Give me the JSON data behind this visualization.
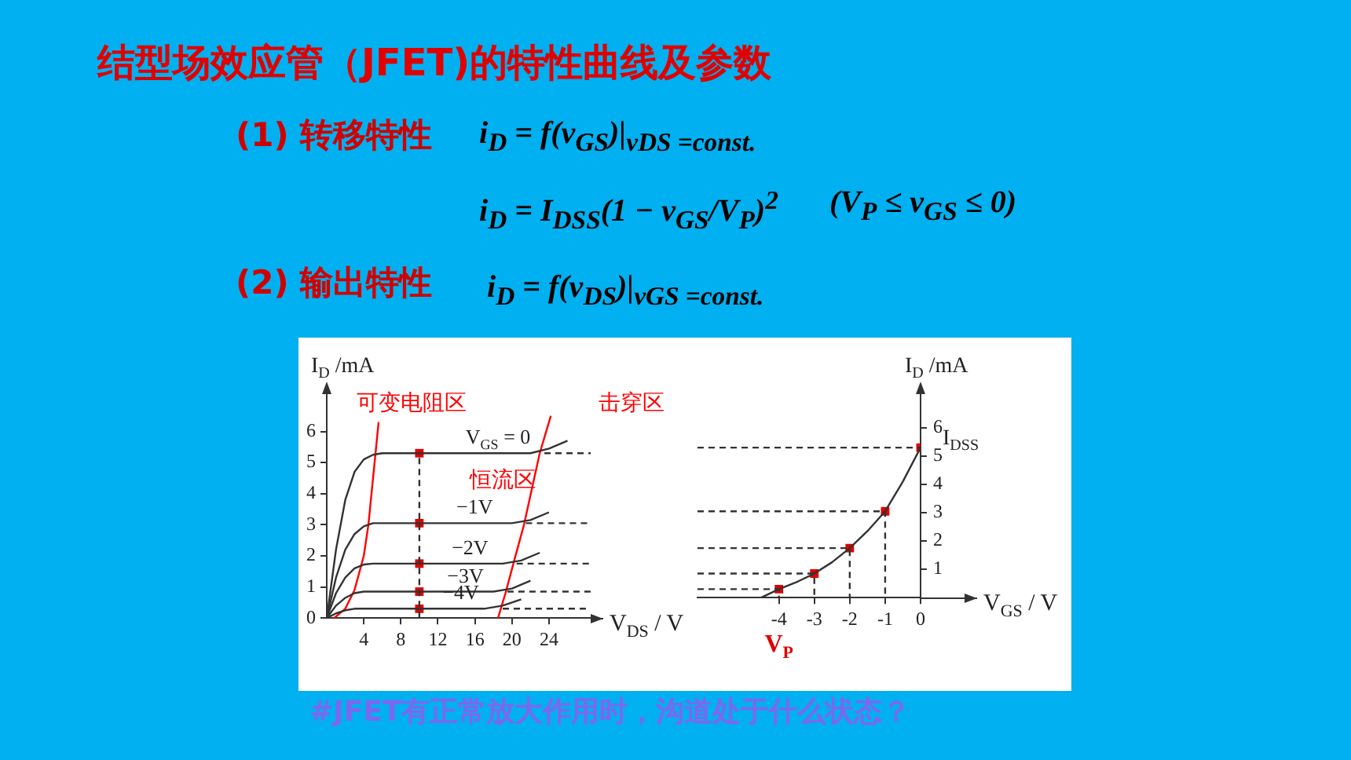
{
  "chart_data": [
    {
      "type": "other",
      "title": "结型场效应管（JFET)的特性曲线及参数",
      "annotations": [
        "(1) 转移特性",
        "i$_{D}$ = f(v$_{GS}$)|$_{vDS =const.}$",
        "i$_{D}$ = I$_{DSS}$(1 − v$_{GS}$/V$_{P}$)$^{2}$",
        "(V$_{P}$ ≤ v$_{GS}$ ≤ 0)",
        "(2) 输出特性",
        "i$_{D}$ = f(v$_{DS}$)|$_{vGS =const.}$",
        "#JFET有正常放大作用时，沟道处于什么状态？"
      ]
    },
    {
      "type": "line",
      "xlabel": "V$_{DS}$ / V",
      "ylabel": "I$_{D}$ /mA",
      "xlim": [
        0,
        28.5
      ],
      "ylim": [
        0,
        7.3
      ],
      "xticks": [
        4,
        8,
        12,
        16,
        20,
        24
      ],
      "yticks": [
        0,
        1,
        2,
        3,
        4,
        5,
        6
      ],
      "grid": false,
      "legend": false,
      "marker": "none",
      "annotations": [
        "可变电阻区",
        "击穿区",
        "恒流区"
      ],
      "series": [
        {
          "name": "V$_{GS}$ = 0",
          "color": "#333333",
          "x": [
            0,
            1,
            2,
            3,
            4,
            5,
            6,
            22,
            24,
            26
          ],
          "values": [
            0,
            2.2,
            3.8,
            4.7,
            5.1,
            5.25,
            5.3,
            5.3,
            5.45,
            5.7
          ]
        },
        {
          "name": "−1V",
          "color": "#333333",
          "x": [
            0,
            1,
            2,
            3,
            4,
            5,
            20,
            22,
            24
          ],
          "values": [
            0,
            1.3,
            2.2,
            2.7,
            2.95,
            3.05,
            3.05,
            3.15,
            3.4
          ]
        },
        {
          "name": "−2V",
          "color": "#333333",
          "x": [
            0,
            1,
            2,
            3,
            4,
            5,
            19,
            21,
            23
          ],
          "values": [
            0,
            0.8,
            1.3,
            1.6,
            1.72,
            1.75,
            1.75,
            1.85,
            2.1
          ]
        },
        {
          "name": "−3V",
          "color": "#333333",
          "x": [
            0,
            1,
            2,
            3,
            4,
            18,
            20,
            22
          ],
          "values": [
            0,
            0.4,
            0.65,
            0.8,
            0.85,
            0.85,
            0.95,
            1.2
          ]
        },
        {
          "name": "−4V",
          "color": "#333333",
          "x": [
            0,
            1,
            2,
            3,
            17,
            19,
            21
          ],
          "values": [
            0,
            0.15,
            0.25,
            0.3,
            0.3,
            0.4,
            0.6
          ]
        },
        {
          "color": "#ff0000",
          "x": [
            0.8,
            2,
            3,
            4,
            4.5,
            5,
            5.6
          ],
          "values": [
            0,
            0.3,
            0.9,
            2,
            3,
            4.5,
            6.3
          ]
        },
        {
          "color": "#ff0000",
          "x": [
            18.5,
            19.3,
            20.2,
            21.3,
            23,
            24.2
          ],
          "values": [
            0,
            0.8,
            1.8,
            3,
            5.3,
            6.5
          ]
        },
        {
          "color": "#333333",
          "line_style": "dashed",
          "x": [
            10,
            10
          ],
          "values": [
            0,
            5.3
          ]
        },
        {
          "color": "#333333",
          "line_style": "dashed",
          "x": [
            23.5,
            28.5
          ],
          "values": [
            5.3,
            5.3
          ]
        },
        {
          "color": "#333333",
          "line_style": "dashed",
          "x": [
            21.5,
            28.5
          ],
          "values": [
            3.05,
            3.05
          ]
        },
        {
          "color": "#333333",
          "line_style": "dashed",
          "x": [
            20.5,
            28.5
          ],
          "values": [
            1.75,
            1.75
          ]
        },
        {
          "color": "#333333",
          "line_style": "dashed",
          "x": [
            19.5,
            28.5
          ],
          "values": [
            0.85,
            0.85
          ]
        },
        {
          "color": "#333333",
          "line_style": "dashed",
          "x": [
            19,
            28.5
          ],
          "values": [
            0.3,
            0.3
          ]
        },
        {
          "type": "scatter",
          "marker": "square",
          "color": "#e00000",
          "x": [
            10,
            10,
            10,
            10,
            10
          ],
          "values": [
            5.3,
            3.05,
            1.75,
            0.85,
            0.3
          ]
        }
      ]
    },
    {
      "type": "line",
      "xlabel": "V$_{GS}$ / V",
      "ylabel": "I$_{D}$ /mA",
      "xlim": [
        -6.3,
        0
      ],
      "ylim": [
        0,
        7.3
      ],
      "xticks": [
        -4,
        -3,
        -2,
        -1,
        0
      ],
      "yticks": [
        1,
        2,
        3,
        4,
        5,
        6
      ],
      "grid": false,
      "legend": false,
      "marker": "none",
      "annotations": [
        {
          "text": "V$_{P}$",
          "x": -4,
          "y": 0.3
        },
        {
          "text": "I$_{DSS}$",
          "x": 0,
          "y": 5.3
        }
      ],
      "series": [
        {
          "color": "#333333",
          "line_style": "dashed",
          "x": [
            -6.3,
            0
          ],
          "values": [
            5.3,
            5.3
          ]
        },
        {
          "color": "#333333",
          "line_style": "dashed",
          "x": [
            -6.3,
            -1,
            -1
          ],
          "values": [
            3.05,
            3.05,
            0
          ]
        },
        {
          "color": "#333333",
          "line_style": "dashed",
          "x": [
            -6.3,
            -2,
            -2
          ],
          "values": [
            1.75,
            1.75,
            0
          ]
        },
        {
          "color": "#333333",
          "line_style": "dashed",
          "x": [
            -6.3,
            -3,
            -3
          ],
          "values": [
            0.85,
            0.85,
            0
          ]
        },
        {
          "color": "#333333",
          "line_style": "dashed",
          "x": [
            -6.3,
            -4,
            -4
          ],
          "values": [
            0.3,
            0.3,
            0
          ]
        },
        {
          "color": "#333333",
          "x": [
            -4.5,
            -4,
            -3.5,
            -3,
            -2.5,
            -2,
            -1.5,
            -1,
            -0.5,
            0
          ],
          "values": [
            0,
            0.3,
            0.55,
            0.85,
            1.25,
            1.75,
            2.35,
            3.05,
            4.1,
            5.3
          ]
        },
        {
          "type": "scatter",
          "marker": "square",
          "color": "#e00000",
          "x": [
            -4,
            -3,
            -2,
            -1,
            0
          ],
          "values": [
            0.3,
            0.85,
            1.75,
            3.05,
            5.3
          ]
        }
      ]
    }
  ]
}
